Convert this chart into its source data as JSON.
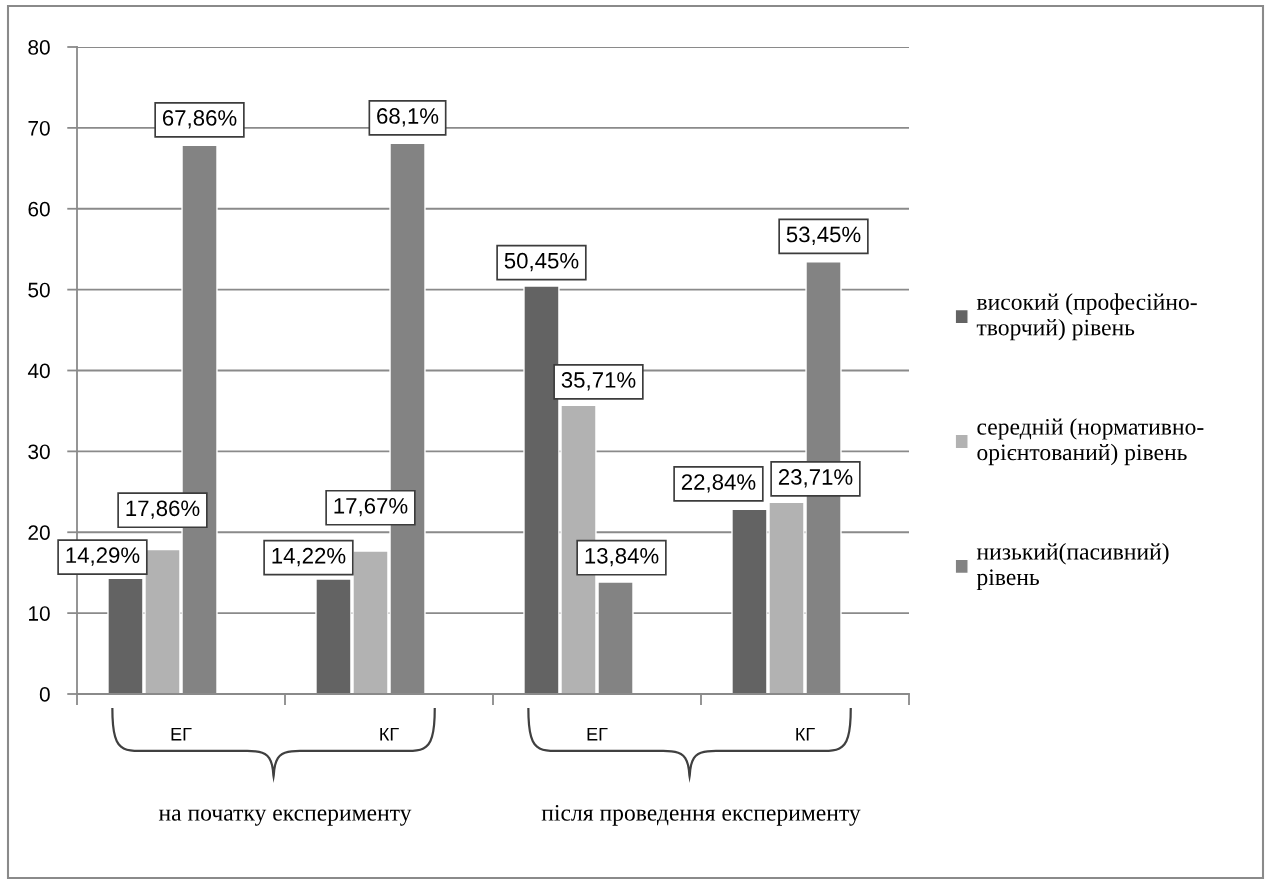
{
  "chart_data": {
    "type": "bar",
    "categories": [
      "ЕГ",
      "КГ",
      "ЕГ",
      "КГ"
    ],
    "series": [
      {
        "name": "високий (професійно-\nтворчий) рівень",
        "color": "#636363",
        "values": [
          14.29,
          14.22,
          50.45,
          22.84
        ],
        "value_labels": [
          "14,29%",
          "14,22%",
          "50,45%",
          "22,84%"
        ]
      },
      {
        "name": "середній (нормативно-\nорієнтований) рівень",
        "color": "#b2b2b2",
        "values": [
          17.86,
          17.67,
          35.71,
          23.71
        ],
        "value_labels": [
          "17,86%",
          "17,67%",
          "35,71%",
          "23,71%"
        ]
      },
      {
        "name": "низький(пасивний)\nрівень",
        "color": "#838383",
        "values": [
          67.86,
          68.1,
          13.84,
          53.45
        ],
        "value_labels": [
          "67,86%",
          "68,1%",
          "13,84%",
          "53,45%"
        ]
      }
    ],
    "ylim": [
      0,
      80
    ],
    "yticks": [
      0,
      10,
      20,
      30,
      40,
      50,
      60,
      70,
      80
    ],
    "grid": "y",
    "legend": "right",
    "annotations": [
      "на початку експерименту",
      "після проведення експерименту"
    ]
  }
}
